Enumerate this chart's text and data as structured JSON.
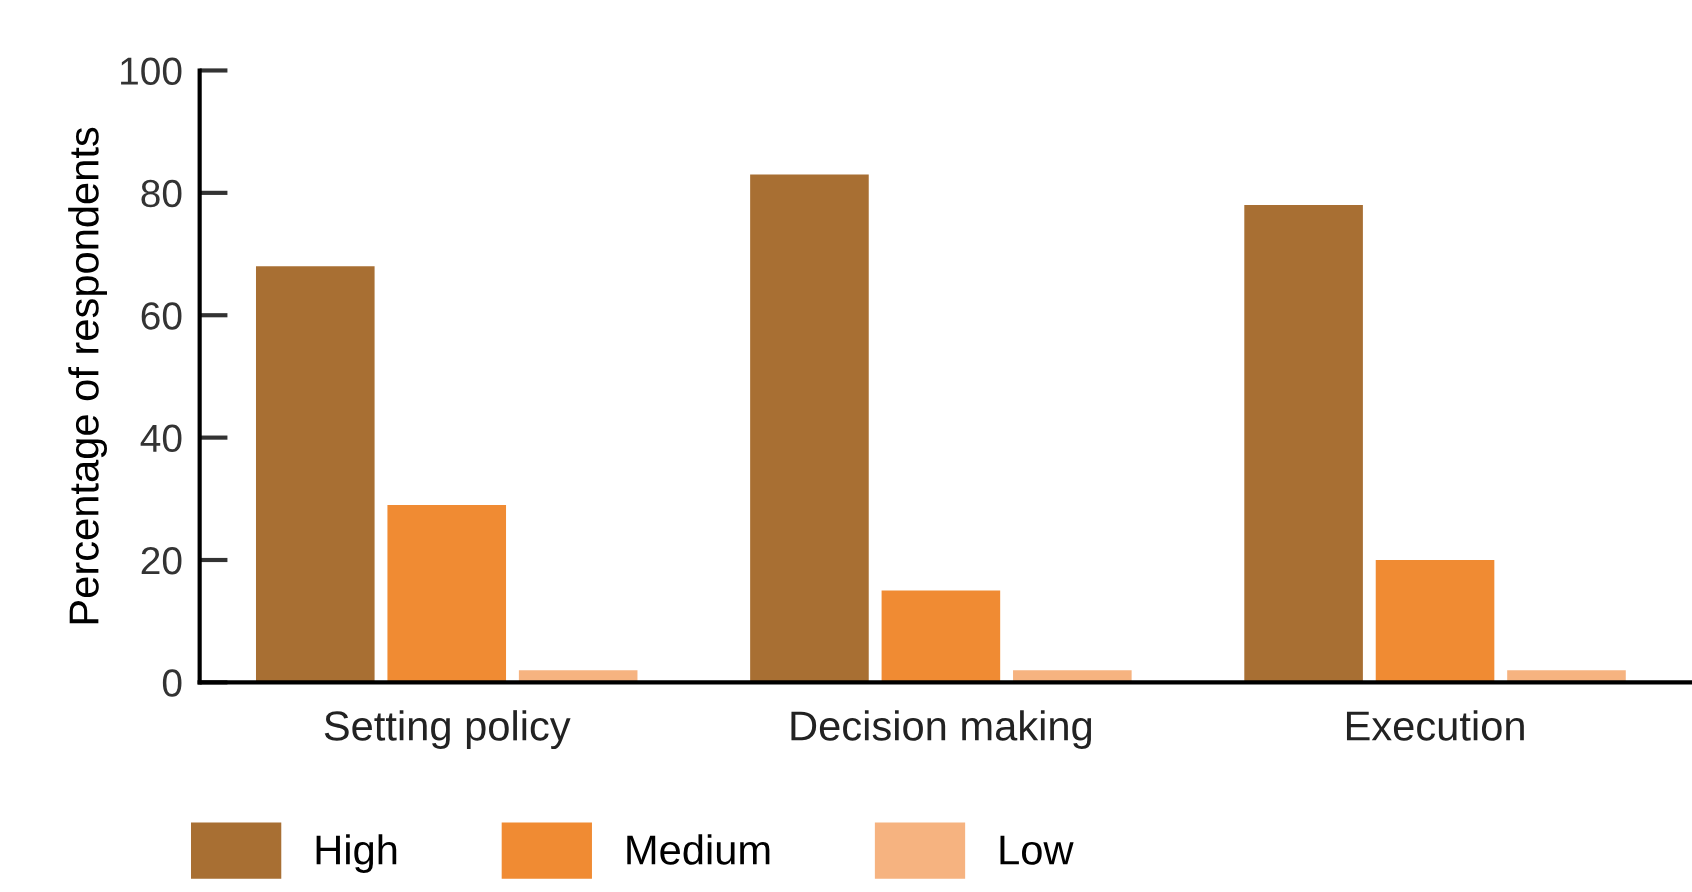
{
  "chart_data": {
    "type": "bar",
    "ylabel": "Percentage of respondents",
    "categories": [
      "Setting policy",
      "Decision making",
      "Execution"
    ],
    "series": [
      {
        "name": "High",
        "color": "#a86f33",
        "values": [
          68,
          83,
          78
        ]
      },
      {
        "name": "Medium",
        "color": "#f08b33",
        "values": [
          29,
          15,
          20
        ]
      },
      {
        "name": "Low",
        "color": "#f6b380",
        "values": [
          2,
          2,
          2
        ]
      }
    ],
    "ylim": [
      0,
      100
    ],
    "yticks": [
      0,
      20,
      40,
      60,
      80,
      100
    ],
    "grid": false,
    "legend": "bottom left"
  }
}
